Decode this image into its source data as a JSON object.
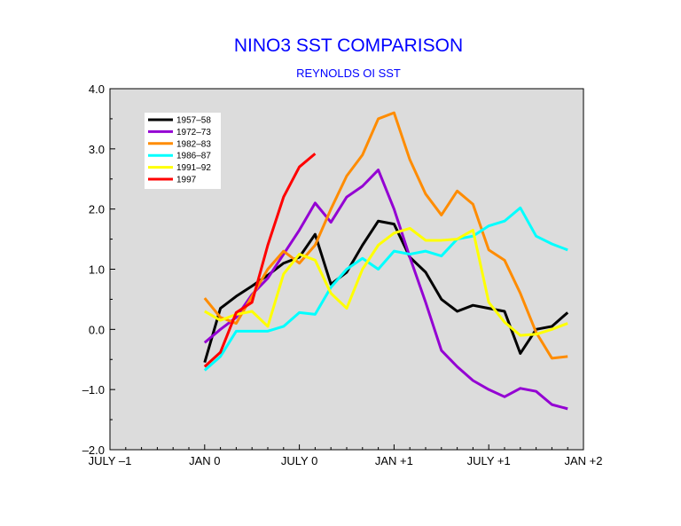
{
  "chart_data": {
    "type": "line",
    "title": "NINO3 SST COMPARISON",
    "subtitle": "REYNOLDS OI SST",
    "xlabel": "",
    "ylabel": "",
    "xlim": [
      -6,
      24
    ],
    "ylim": [
      -2.0,
      4.0
    ],
    "x_ticks": [
      {
        "value": -6,
        "label": "JULY –1"
      },
      {
        "value": 0,
        "label": "JAN 0"
      },
      {
        "value": 6,
        "label": "JULY 0"
      },
      {
        "value": 12,
        "label": "JAN +1"
      },
      {
        "value": 18,
        "label": "JULY +1"
      },
      {
        "value": 24,
        "label": "JAN +2"
      }
    ],
    "y_ticks": [
      {
        "value": 4.0,
        "label": "4.0"
      },
      {
        "value": 3.0,
        "label": "3.0"
      },
      {
        "value": 2.0,
        "label": "2.0"
      },
      {
        "value": 1.0,
        "label": "1.0"
      },
      {
        "value": 0.0,
        "label": "0.0"
      },
      {
        "value": -1.0,
        "label": "–1.0"
      },
      {
        "value": -2.0,
        "label": "–2.0"
      }
    ],
    "grid": false,
    "legend": "top-left",
    "plot_background": "#dcdcdc",
    "series": [
      {
        "name": "1957–58",
        "color": "#000000",
        "values": [
          -0.55,
          0.35,
          0.55,
          0.72,
          0.9,
          1.1,
          1.2,
          1.58,
          0.75,
          0.95,
          1.4,
          1.8,
          1.75,
          1.2,
          0.95,
          0.5,
          0.3,
          0.4,
          0.35,
          0.3,
          -0.4,
          0.0,
          0.05,
          0.28
        ]
      },
      {
        "name": "1972–73",
        "color": "#9400d3",
        "values": [
          -0.22,
          0.0,
          0.2,
          0.58,
          0.85,
          1.25,
          1.65,
          2.1,
          1.78,
          2.2,
          2.38,
          2.65,
          2.0,
          1.2,
          0.45,
          -0.35,
          -0.62,
          -0.85,
          -1.0,
          -1.12,
          -0.98,
          -1.03,
          -1.25,
          -1.32
        ]
      },
      {
        "name": "1982–83",
        "color": "#ff8c00",
        "values": [
          0.52,
          0.2,
          0.1,
          0.55,
          1.0,
          1.3,
          1.1,
          1.4,
          2.0,
          2.55,
          2.9,
          3.5,
          3.6,
          2.82,
          2.25,
          1.9,
          2.3,
          2.08,
          1.32,
          1.15,
          0.6,
          -0.05,
          -0.48,
          -0.45
        ]
      },
      {
        "name": "1986–87",
        "color": "#00ffff",
        "values": [
          -0.68,
          -0.45,
          -0.03,
          -0.03,
          -0.03,
          0.05,
          0.28,
          0.25,
          0.7,
          1.0,
          1.18,
          1.0,
          1.3,
          1.25,
          1.3,
          1.22,
          1.5,
          1.55,
          1.72,
          1.8,
          2.02,
          1.55,
          1.42,
          1.32
        ]
      },
      {
        "name": "1991–92",
        "color": "#ffff00",
        "values": [
          0.3,
          0.15,
          0.25,
          0.3,
          0.05,
          0.92,
          1.25,
          1.15,
          0.6,
          0.35,
          1.0,
          1.4,
          1.6,
          1.68,
          1.48,
          1.48,
          1.5,
          1.65,
          0.45,
          0.12,
          -0.1,
          -0.08,
          0.0,
          0.1
        ]
      },
      {
        "name": "1997",
        "color": "#ff0000",
        "values": [
          -0.62,
          -0.38,
          0.28,
          0.45,
          1.4,
          2.2,
          2.7,
          2.92
        ]
      }
    ]
  }
}
